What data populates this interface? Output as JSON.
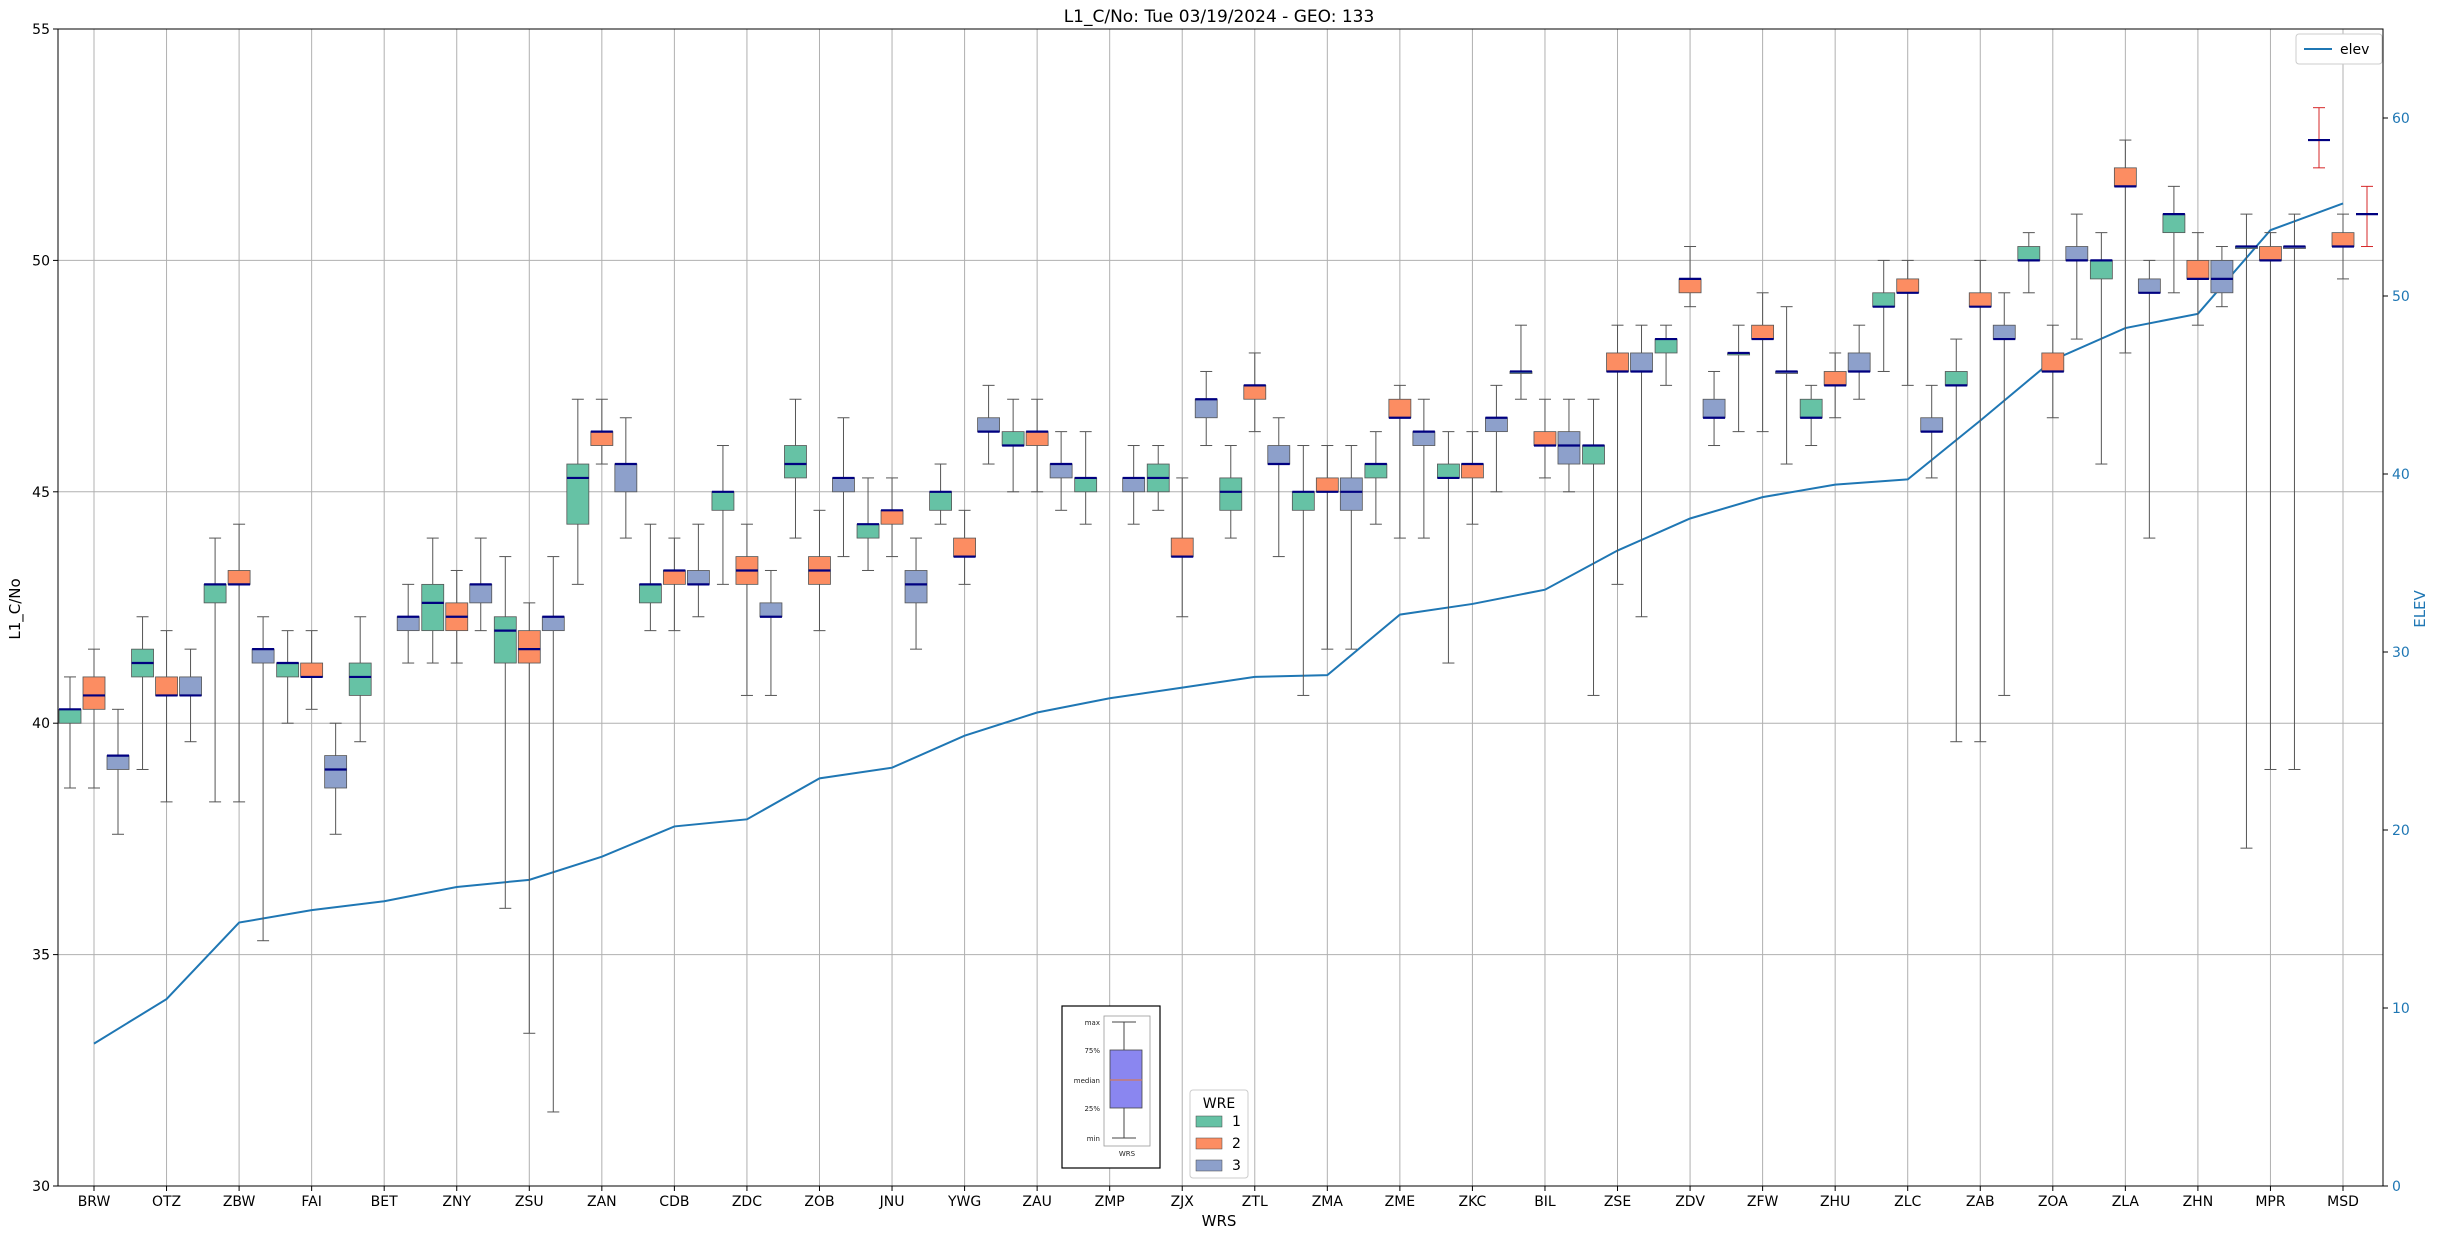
{
  "chart_data": {
    "type": "box",
    "title": "L1_C/No: Tue 03/19/2024 - GEO: 133",
    "xlabel": "WRS",
    "ylabel": "L1_C/No",
    "y2label": "ELEV",
    "ylim": [
      30,
      55
    ],
    "y2lim": [
      0,
      65
    ],
    "yticks": [
      30,
      35,
      40,
      45,
      50,
      55
    ],
    "y2ticks": [
      0,
      10,
      20,
      30,
      40,
      50,
      60
    ],
    "grid": true,
    "colors": {
      "1": "#66c2a5",
      "2": "#fc8d62",
      "3": "#8da0cb",
      "elev": "#1f77b4",
      "median": "#000080",
      "whisker": "#555555",
      "msd_whisker": "#d62728"
    },
    "categories": [
      "BRW",
      "OTZ",
      "ZBW",
      "FAI",
      "BET",
      "ZNY",
      "ZSU",
      "ZAN",
      "CDB",
      "ZDC",
      "ZOB",
      "JNU",
      "YWG",
      "ZAU",
      "ZMP",
      "ZJX",
      "ZTL",
      "ZMA",
      "ZME",
      "ZKC",
      "BIL",
      "ZSE",
      "ZDV",
      "ZFW",
      "ZHU",
      "ZLC",
      "ZAB",
      "ZOA",
      "ZLA",
      "ZHN",
      "MPR",
      "MSD"
    ],
    "elev": [
      8.0,
      10.5,
      14.8,
      15.5,
      16.0,
      16.8,
      17.2,
      18.5,
      20.2,
      20.6,
      22.9,
      23.5,
      25.3,
      26.6,
      27.4,
      28.0,
      28.6,
      28.7,
      32.1,
      32.7,
      33.5,
      35.7,
      37.5,
      38.7,
      39.4,
      39.7,
      43.0,
      46.4,
      48.2,
      49.0,
      53.7,
      55.2
    ],
    "legend_wre": {
      "title": "WRE",
      "items": [
        "1",
        "2",
        "3"
      ]
    },
    "legend_elev": "elev",
    "inset": {
      "labels": [
        "max",
        "75%",
        "median",
        "25%",
        "min"
      ],
      "xlabel": "WRS"
    },
    "series": [
      {
        "name": "1",
        "boxes": [
          {
            "cat": "BRW",
            "min": 38.6,
            "q1": 40.0,
            "med": 40.3,
            "q3": 40.3,
            "max": 41.0
          },
          {
            "cat": "OTZ",
            "min": 39.0,
            "q1": 41.0,
            "med": 41.3,
            "q3": 41.6,
            "max": 42.3
          },
          {
            "cat": "ZBW",
            "min": 38.3,
            "q1": 42.6,
            "med": 43.0,
            "q3": 43.0,
            "max": 44.0
          },
          {
            "cat": "FAI",
            "min": 40.0,
            "q1": 41.0,
            "med": 41.3,
            "q3": 41.3,
            "max": 42.0
          },
          {
            "cat": "BET",
            "min": 39.6,
            "q1": 40.6,
            "med": 41.0,
            "q3": 41.3,
            "max": 42.3
          },
          {
            "cat": "ZNY",
            "min": 41.3,
            "q1": 42.0,
            "med": 42.6,
            "q3": 43.0,
            "max": 44.0
          },
          {
            "cat": "ZSU",
            "min": 36.0,
            "q1": 41.3,
            "med": 42.0,
            "q3": 42.3,
            "max": 43.6
          },
          {
            "cat": "ZAN",
            "min": 43.0,
            "q1": 44.3,
            "med": 45.3,
            "q3": 45.6,
            "max": 47.0
          },
          {
            "cat": "CDB",
            "min": 42.0,
            "q1": 42.6,
            "med": 43.0,
            "q3": 43.0,
            "max": 44.3
          },
          {
            "cat": "ZDC",
            "min": 43.0,
            "q1": 44.6,
            "med": 45.0,
            "q3": 45.0,
            "max": 46.0
          },
          {
            "cat": "ZOB",
            "min": 44.0,
            "q1": 45.3,
            "med": 45.6,
            "q3": 46.0,
            "max": 47.0
          },
          {
            "cat": "JNU",
            "min": 43.3,
            "q1": 44.0,
            "med": 44.3,
            "q3": 44.3,
            "max": 45.3
          },
          {
            "cat": "YWG",
            "min": 44.3,
            "q1": 44.6,
            "med": 45.0,
            "q3": 45.0,
            "max": 45.6
          },
          {
            "cat": "ZAU",
            "min": 45.0,
            "q1": 46.0,
            "med": 46.0,
            "q3": 46.3,
            "max": 47.0
          },
          {
            "cat": "ZMP",
            "min": 44.3,
            "q1": 45.0,
            "med": 45.3,
            "q3": 45.3,
            "max": 46.3
          },
          {
            "cat": "ZJX",
            "min": 44.6,
            "q1": 45.0,
            "med": 45.3,
            "q3": 45.6,
            "max": 46.0
          },
          {
            "cat": "ZTL",
            "min": 44.0,
            "q1": 44.6,
            "med": 45.0,
            "q3": 45.3,
            "max": 46.0
          },
          {
            "cat": "ZMA",
            "min": 40.6,
            "q1": 44.6,
            "med": 45.0,
            "q3": 45.0,
            "max": 46.0
          },
          {
            "cat": "ZME",
            "min": 44.3,
            "q1": 45.3,
            "med": 45.6,
            "q3": 45.6,
            "max": 46.3
          },
          {
            "cat": "ZKC",
            "min": 41.3,
            "q1": 45.3,
            "med": 45.3,
            "q3": 45.6,
            "max": 46.3
          },
          {
            "cat": "BIL",
            "min": 47.0,
            "q1": 47.6,
            "med": 47.6,
            "q3": 47.6,
            "max": 48.6
          },
          {
            "cat": "ZSE",
            "min": 40.6,
            "q1": 45.6,
            "med": 46.0,
            "q3": 46.0,
            "max": 47.0
          },
          {
            "cat": "ZDV",
            "min": 47.3,
            "q1": 48.0,
            "med": 48.3,
            "q3": 48.3,
            "max": 48.6
          },
          {
            "cat": "ZFW",
            "min": 46.3,
            "q1": 48.0,
            "med": 48.0,
            "q3": 48.0,
            "max": 48.6
          },
          {
            "cat": "ZHU",
            "min": 46.0,
            "q1": 46.6,
            "med": 46.6,
            "q3": 47.0,
            "max": 47.3
          },
          {
            "cat": "ZLC",
            "min": 47.6,
            "q1": 49.0,
            "med": 49.0,
            "q3": 49.3,
            "max": 50.0
          },
          {
            "cat": "ZAB",
            "min": 39.6,
            "q1": 47.3,
            "med": 47.3,
            "q3": 47.6,
            "max": 48.3
          },
          {
            "cat": "ZOA",
            "min": 49.3,
            "q1": 50.0,
            "med": 50.0,
            "q3": 50.3,
            "max": 50.6
          },
          {
            "cat": "ZLA",
            "min": 45.6,
            "q1": 49.6,
            "med": 50.0,
            "q3": 50.0,
            "max": 50.6
          },
          {
            "cat": "ZHN",
            "min": 49.3,
            "q1": 50.6,
            "med": 51.0,
            "q3": 51.0,
            "max": 51.6
          },
          {
            "cat": "MPR",
            "min": 37.3,
            "q1": 50.3,
            "med": 50.3,
            "q3": 50.3,
            "max": 51.0
          }
        ]
      },
      {
        "name": "2",
        "boxes": [
          {
            "cat": "BRW",
            "min": 38.6,
            "q1": 40.3,
            "med": 40.6,
            "q3": 41.0,
            "max": 41.6
          },
          {
            "cat": "OTZ",
            "min": 38.3,
            "q1": 40.6,
            "med": 40.6,
            "q3": 41.0,
            "max": 42.0
          },
          {
            "cat": "ZBW",
            "min": 38.3,
            "q1": 43.0,
            "med": 43.0,
            "q3": 43.3,
            "max": 44.3
          },
          {
            "cat": "FAI",
            "min": 40.3,
            "q1": 41.0,
            "med": 41.0,
            "q3": 41.3,
            "max": 42.0
          },
          {
            "cat": "ZNY",
            "min": 41.3,
            "q1": 42.0,
            "med": 42.3,
            "q3": 42.6,
            "max": 43.3
          },
          {
            "cat": "ZSU",
            "min": 33.3,
            "q1": 41.3,
            "med": 41.6,
            "q3": 42.0,
            "max": 42.6
          },
          {
            "cat": "ZAN",
            "min": 45.6,
            "q1": 46.0,
            "med": 46.3,
            "q3": 46.3,
            "max": 47.0
          },
          {
            "cat": "CDB",
            "min": 42.0,
            "q1": 43.0,
            "med": 43.3,
            "q3": 43.3,
            "max": 44.0
          },
          {
            "cat": "ZDC",
            "min": 40.6,
            "q1": 43.0,
            "med": 43.3,
            "q3": 43.6,
            "max": 44.3
          },
          {
            "cat": "ZOB",
            "min": 42.0,
            "q1": 43.0,
            "med": 43.3,
            "q3": 43.6,
            "max": 44.6
          },
          {
            "cat": "JNU",
            "min": 43.6,
            "q1": 44.3,
            "med": 44.6,
            "q3": 44.6,
            "max": 45.3
          },
          {
            "cat": "YWG",
            "min": 43.0,
            "q1": 43.6,
            "med": 43.6,
            "q3": 44.0,
            "max": 44.6
          },
          {
            "cat": "ZAU",
            "min": 45.0,
            "q1": 46.0,
            "med": 46.3,
            "q3": 46.3,
            "max": 47.0
          },
          {
            "cat": "ZJX",
            "min": 42.3,
            "q1": 43.6,
            "med": 43.6,
            "q3": 44.0,
            "max": 45.3
          },
          {
            "cat": "ZTL",
            "min": 46.3,
            "q1": 47.0,
            "med": 47.3,
            "q3": 47.3,
            "max": 48.0
          },
          {
            "cat": "ZMA",
            "min": 41.6,
            "q1": 45.0,
            "med": 45.0,
            "q3": 45.3,
            "max": 46.0
          },
          {
            "cat": "ZME",
            "min": 44.0,
            "q1": 46.6,
            "med": 46.6,
            "q3": 47.0,
            "max": 47.3
          },
          {
            "cat": "ZKC",
            "min": 44.3,
            "q1": 45.3,
            "med": 45.6,
            "q3": 45.6,
            "max": 46.3
          },
          {
            "cat": "BIL",
            "min": 45.3,
            "q1": 46.0,
            "med": 46.0,
            "q3": 46.3,
            "max": 47.0
          },
          {
            "cat": "ZSE",
            "min": 43.0,
            "q1": 47.6,
            "med": 47.6,
            "q3": 48.0,
            "max": 48.6
          },
          {
            "cat": "ZDV",
            "min": 49.0,
            "q1": 49.3,
            "med": 49.6,
            "q3": 49.6,
            "max": 50.3
          },
          {
            "cat": "ZFW",
            "min": 46.3,
            "q1": 48.3,
            "med": 48.3,
            "q3": 48.6,
            "max": 49.3
          },
          {
            "cat": "ZHU",
            "min": 46.6,
            "q1": 47.3,
            "med": 47.3,
            "q3": 47.6,
            "max": 48.0
          },
          {
            "cat": "ZLC",
            "min": 47.3,
            "q1": 49.3,
            "med": 49.3,
            "q3": 49.6,
            "max": 50.0
          },
          {
            "cat": "ZAB",
            "min": 39.6,
            "q1": 49.0,
            "med": 49.0,
            "q3": 49.3,
            "max": 50.0
          },
          {
            "cat": "ZOA",
            "min": 46.6,
            "q1": 47.6,
            "med": 47.6,
            "q3": 48.0,
            "max": 48.6
          },
          {
            "cat": "ZLA",
            "min": 48.0,
            "q1": 51.6,
            "med": 51.6,
            "q3": 52.0,
            "max": 52.6
          },
          {
            "cat": "ZHN",
            "min": 48.6,
            "q1": 49.6,
            "med": 49.6,
            "q3": 50.0,
            "max": 50.6
          },
          {
            "cat": "MPR",
            "min": 39.0,
            "q1": 50.0,
            "med": 50.0,
            "q3": 50.3,
            "max": 50.6
          },
          {
            "cat": "MSD",
            "min": 49.6,
            "q1": 50.3,
            "med": 50.3,
            "q3": 50.6,
            "max": 51.0
          }
        ]
      },
      {
        "name": "3",
        "boxes": [
          {
            "cat": "BRW",
            "min": 37.6,
            "q1": 39.0,
            "med": 39.3,
            "q3": 39.3,
            "max": 40.3
          },
          {
            "cat": "OTZ",
            "min": 39.6,
            "q1": 40.6,
            "med": 40.6,
            "q3": 41.0,
            "max": 41.6
          },
          {
            "cat": "ZBW",
            "min": 35.3,
            "q1": 41.3,
            "med": 41.6,
            "q3": 41.6,
            "max": 42.3
          },
          {
            "cat": "FAI",
            "min": 37.6,
            "q1": 38.6,
            "med": 39.0,
            "q3": 39.3,
            "max": 40.0
          },
          {
            "cat": "BET",
            "min": 41.3,
            "q1": 42.0,
            "med": 42.3,
            "q3": 42.3,
            "max": 43.0
          },
          {
            "cat": "ZNY",
            "min": 42.0,
            "q1": 42.6,
            "med": 43.0,
            "q3": 43.0,
            "max": 44.0
          },
          {
            "cat": "ZSU",
            "min": 31.6,
            "q1": 42.0,
            "med": 42.3,
            "q3": 42.3,
            "max": 43.6
          },
          {
            "cat": "ZAN",
            "min": 44.0,
            "q1": 45.0,
            "med": 45.6,
            "q3": 45.6,
            "max": 46.6
          },
          {
            "cat": "CDB",
            "min": 42.3,
            "q1": 43.0,
            "med": 43.0,
            "q3": 43.3,
            "max": 44.3
          },
          {
            "cat": "ZDC",
            "min": 40.6,
            "q1": 42.3,
            "med": 42.3,
            "q3": 42.6,
            "max": 43.3
          },
          {
            "cat": "ZOB",
            "min": 43.6,
            "q1": 45.0,
            "med": 45.3,
            "q3": 45.3,
            "max": 46.6
          },
          {
            "cat": "JNU",
            "min": 41.6,
            "q1": 42.6,
            "med": 43.0,
            "q3": 43.3,
            "max": 44.0
          },
          {
            "cat": "YWG",
            "min": 45.6,
            "q1": 46.3,
            "med": 46.3,
            "q3": 46.6,
            "max": 47.3
          },
          {
            "cat": "ZAU",
            "min": 44.6,
            "q1": 45.3,
            "med": 45.6,
            "q3": 45.6,
            "max": 46.3
          },
          {
            "cat": "ZMP",
            "min": 44.3,
            "q1": 45.0,
            "med": 45.3,
            "q3": 45.3,
            "max": 46.0
          },
          {
            "cat": "ZJX",
            "min": 46.0,
            "q1": 46.6,
            "med": 47.0,
            "q3": 47.0,
            "max": 47.6
          },
          {
            "cat": "ZTL",
            "min": 43.6,
            "q1": 45.6,
            "med": 45.6,
            "q3": 46.0,
            "max": 46.6
          },
          {
            "cat": "ZMA",
            "min": 41.6,
            "q1": 44.6,
            "med": 45.0,
            "q3": 45.3,
            "max": 46.0
          },
          {
            "cat": "ZME",
            "min": 44.0,
            "q1": 46.0,
            "med": 46.3,
            "q3": 46.3,
            "max": 47.0
          },
          {
            "cat": "ZKC",
            "min": 45.0,
            "q1": 46.3,
            "med": 46.6,
            "q3": 46.6,
            "max": 47.3
          },
          {
            "cat": "BIL",
            "min": 45.0,
            "q1": 45.6,
            "med": 46.0,
            "q3": 46.3,
            "max": 47.0
          },
          {
            "cat": "ZSE",
            "min": 42.3,
            "q1": 47.6,
            "med": 47.6,
            "q3": 48.0,
            "max": 48.6
          },
          {
            "cat": "ZDV",
            "min": 46.0,
            "q1": 46.6,
            "med": 46.6,
            "q3": 47.0,
            "max": 47.6
          },
          {
            "cat": "ZFW",
            "min": 45.6,
            "q1": 47.6,
            "med": 47.6,
            "q3": 47.6,
            "max": 49.0
          },
          {
            "cat": "ZHU",
            "min": 47.0,
            "q1": 47.6,
            "med": 47.6,
            "q3": 48.0,
            "max": 48.6
          },
          {
            "cat": "ZLC",
            "min": 45.3,
            "q1": 46.3,
            "med": 46.3,
            "q3": 46.6,
            "max": 47.3
          },
          {
            "cat": "ZAB",
            "min": 40.6,
            "q1": 48.3,
            "med": 48.3,
            "q3": 48.6,
            "max": 49.3
          },
          {
            "cat": "ZOA",
            "min": 48.3,
            "q1": 50.0,
            "med": 50.0,
            "q3": 50.3,
            "max": 51.0
          },
          {
            "cat": "ZLA",
            "min": 44.0,
            "q1": 49.3,
            "med": 49.3,
            "q3": 49.6,
            "max": 50.0
          },
          {
            "cat": "ZHN",
            "min": 49.0,
            "q1": 49.3,
            "med": 49.6,
            "q3": 50.0,
            "max": 50.3
          },
          {
            "cat": "MPR",
            "min": 39.0,
            "q1": 50.3,
            "med": 50.3,
            "q3": 50.3,
            "max": 51.0
          }
        ]
      }
    ],
    "extra_markers": [
      {
        "cat": "MSD",
        "series": "1",
        "min": 52.0,
        "med": 52.6,
        "max": 53.3
      },
      {
        "cat": "MSD",
        "series": "3",
        "min": 50.3,
        "med": 51.0,
        "max": 51.6
      }
    ]
  }
}
